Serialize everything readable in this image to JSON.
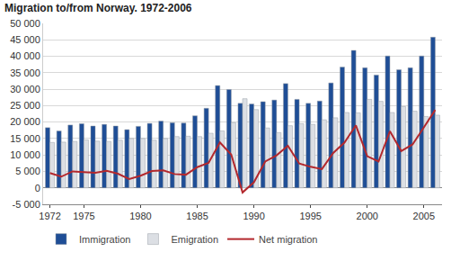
{
  "chart_data": {
    "type": "bar",
    "title": "Migration to/from Norway. 1972-2006",
    "x": [
      1972,
      1973,
      1974,
      1975,
      1976,
      1977,
      1978,
      1979,
      1980,
      1981,
      1982,
      1983,
      1984,
      1985,
      1986,
      1987,
      1988,
      1989,
      1990,
      1991,
      1992,
      1993,
      1994,
      1995,
      1996,
      1997,
      1998,
      1999,
      2000,
      2001,
      2002,
      2003,
      2004,
      2005,
      2006
    ],
    "series": [
      {
        "name": "Immigration",
        "type": "bar",
        "color": "#1f4e96",
        "values": [
          18300,
          17300,
          19100,
          19500,
          18800,
          19300,
          18800,
          17700,
          18700,
          19600,
          20300,
          19800,
          19700,
          21900,
          24200,
          31100,
          29900,
          25700,
          25500,
          26200,
          26700,
          31700,
          26900,
          25700,
          26400,
          31900,
          36700,
          41800,
          36500,
          34300,
          40100,
          35900,
          36500,
          40100,
          45800
        ]
      },
      {
        "name": "Emigration",
        "type": "bar",
        "color": "#dcdfe4",
        "values": [
          13800,
          13900,
          14100,
          14600,
          14200,
          14100,
          14500,
          15000,
          15000,
          14500,
          15000,
          15600,
          15700,
          15600,
          16600,
          17300,
          19800,
          27100,
          23800,
          18200,
          16800,
          18900,
          19500,
          19300,
          20700,
          21300,
          22900,
          22800,
          26900,
          26300,
          22900,
          24700,
          23300,
          21700,
          22100
        ]
      },
      {
        "name": "Net migration",
        "type": "line",
        "color": "#b3282d",
        "values": [
          4500,
          3400,
          5000,
          4900,
          4600,
          5200,
          4300,
          2700,
          3700,
          5100,
          5300,
          4200,
          4000,
          6300,
          7600,
          13800,
          10100,
          -1400,
          1700,
          8000,
          9900,
          12800,
          7400,
          6400,
          5700,
          10600,
          13800,
          19000,
          9600,
          8000,
          17200,
          11200,
          13200,
          18400,
          23700
        ]
      }
    ],
    "xlim": [
      1971.4,
      2006.6
    ],
    "xticks": [
      1972,
      1975,
      1980,
      1985,
      1990,
      1995,
      2000,
      2005
    ],
    "ylim": [
      -5000,
      50000
    ],
    "yticks": [
      {
        "value": -5000,
        "label": "-5 000"
      },
      0,
      {
        "value": 5000,
        "label": "5 000"
      },
      {
        "value": 10000,
        "label": "10 000"
      },
      {
        "value": 15000,
        "label": "15 000"
      },
      {
        "value": 20000,
        "label": "20 000"
      },
      {
        "value": 25000,
        "label": "25 000"
      },
      {
        "value": 30000,
        "label": "30 000"
      },
      {
        "value": 35000,
        "label": "35 000"
      },
      {
        "value": 40000,
        "label": "40 000"
      },
      {
        "value": 45000,
        "label": "45 000"
      },
      {
        "value": 50000,
        "label": "50 000"
      }
    ],
    "grid": true,
    "legend": "bottom"
  }
}
